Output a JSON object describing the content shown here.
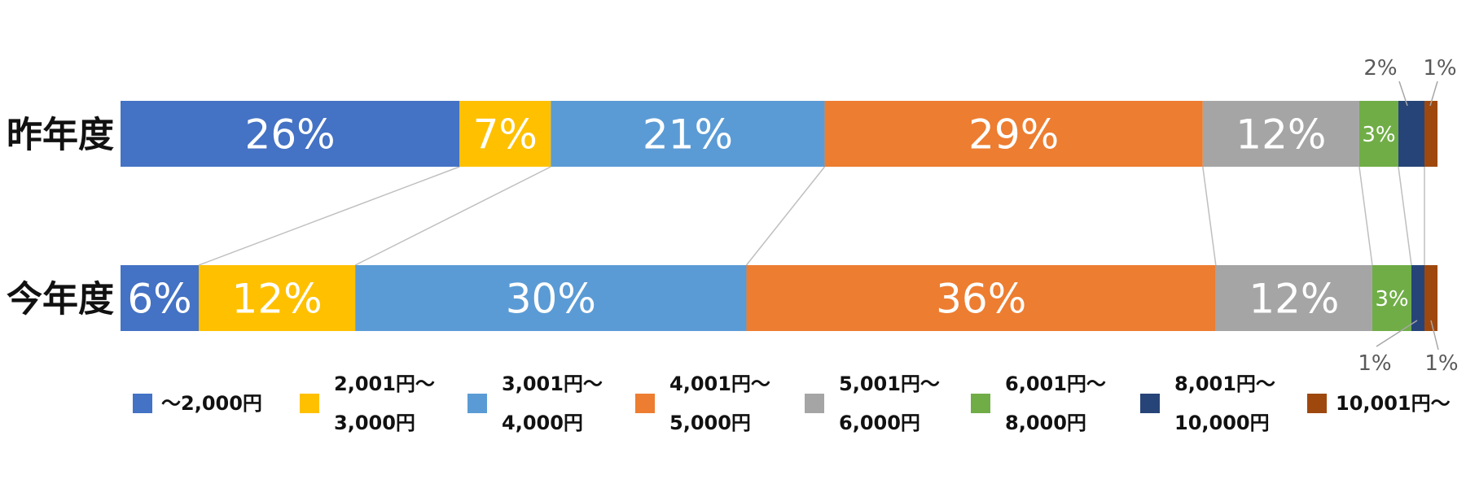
{
  "chart_data": {
    "type": "bar",
    "orientation": "horizontal-stacked-100",
    "categories": [
      "昨年度",
      "今年度"
    ],
    "series": [
      {
        "name": "～2,000円",
        "name_lines": [
          "～2,000円"
        ],
        "color": "#4472C4",
        "values": [
          26,
          6
        ],
        "labels": [
          "26%",
          "6%"
        ]
      },
      {
        "name": "2,001円～3,000円",
        "name_lines": [
          "2,001円～",
          "3,000円"
        ],
        "color": "#FFC000",
        "values": [
          7,
          12
        ],
        "labels": [
          "7%",
          "12%"
        ]
      },
      {
        "name": "3,001円～4,000円",
        "name_lines": [
          "3,001円～",
          "4,000円"
        ],
        "color": "#5B9BD5",
        "values": [
          21,
          30
        ],
        "labels": [
          "21%",
          "30%"
        ]
      },
      {
        "name": "4,001円～5,000円",
        "name_lines": [
          "4,001円～",
          "5,000円"
        ],
        "color": "#ED7D31",
        "values": [
          29,
          36
        ],
        "labels": [
          "29%",
          "36%"
        ]
      },
      {
        "name": "5,001円～6,000円",
        "name_lines": [
          "5,001円～",
          "6,000円"
        ],
        "color": "#A5A5A5",
        "values": [
          12,
          12
        ],
        "labels": [
          "12%",
          "12%"
        ]
      },
      {
        "name": "6,001円～8,000円",
        "name_lines": [
          "6,001円～",
          "8,000円"
        ],
        "color": "#70AD47",
        "values": [
          3,
          3
        ],
        "labels": [
          "3%",
          "3%"
        ]
      },
      {
        "name": "8,001円～10,000円",
        "name_lines": [
          "8,001円～",
          "10,000円"
        ],
        "color": "#264478",
        "values": [
          2,
          1
        ],
        "labels": [
          "2%",
          "1%"
        ]
      },
      {
        "name": "10,001円～",
        "name_lines": [
          "10,001円～"
        ],
        "color": "#9E480E",
        "values": [
          1,
          1
        ],
        "labels": [
          "1%",
          "1%"
        ]
      }
    ],
    "xlim": [
      0,
      100
    ],
    "stack_normalized": true,
    "series_lines": true,
    "legend_position": "bottom",
    "grid": false,
    "title": "",
    "xlabel": "",
    "ylabel": ""
  }
}
